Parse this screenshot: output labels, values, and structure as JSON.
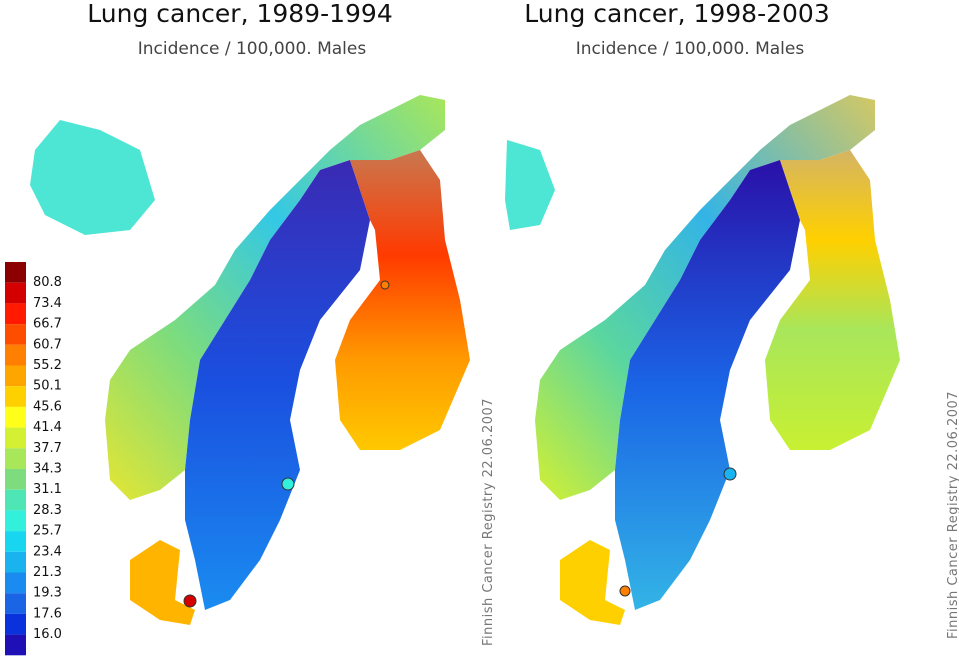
{
  "maps": [
    {
      "title": "Lung cancer, 1989-1994",
      "subtitle": "Incidence / 100,000. Males",
      "credit": "Finnish Cancer Registry 22.06.2007"
    },
    {
      "title": "Lung cancer, 1998-2003",
      "subtitle": "Incidence / 100,000. Males",
      "credit": "Finnish Cancer Registry 22.06.2007"
    }
  ],
  "legend": {
    "labels": [
      "80.8",
      "73.4",
      "66.7",
      "60.7",
      "55.2",
      "50.1",
      "45.6",
      "41.4",
      "37.7",
      "34.3",
      "31.1",
      "28.3",
      "25.7",
      "23.4",
      "21.3",
      "19.3",
      "17.6",
      "16.0"
    ],
    "colors": [
      "#8b0000",
      "#d40000",
      "#ff1a00",
      "#ff4d00",
      "#ff7f00",
      "#ffa500",
      "#ffd000",
      "#ffff1a",
      "#d4f032",
      "#a8e65a",
      "#7ddc7d",
      "#4de6b4",
      "#33f0dc",
      "#19d6f0",
      "#19b4f0",
      "#1a8cf0",
      "#1a64e6",
      "#0a32dc",
      "#1e10b4"
    ]
  }
}
